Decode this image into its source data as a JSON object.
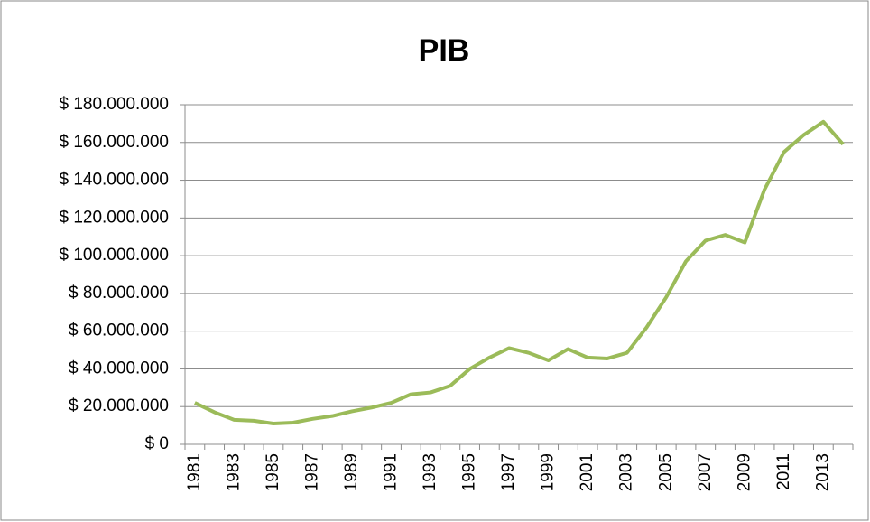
{
  "chart_data": {
    "type": "line",
    "title": "PIB",
    "categories": [
      "1981",
      null,
      "1983",
      null,
      "1985",
      null,
      "1987",
      null,
      "1989",
      null,
      "1991",
      null,
      "1993",
      null,
      "1995",
      null,
      "1997",
      null,
      "1999",
      null,
      "2001",
      null,
      "2003",
      null,
      "2005",
      null,
      "2007",
      null,
      "2009",
      null,
      "2011",
      null,
      "2013",
      null
    ],
    "series": [
      {
        "color": "#9bbb59",
        "values": [
          22000000,
          17000000,
          13000000,
          12500000,
          11000000,
          11500000,
          13500000,
          15000000,
          17500000,
          19500000,
          22000000,
          26500000,
          27500000,
          31000000,
          40000000,
          46000000,
          51000000,
          48500000,
          44500000,
          50500000,
          46000000,
          45500000,
          48500000,
          62000000,
          78000000,
          97000000,
          108000000,
          111000000,
          107000000,
          135000000,
          155000000,
          164000000,
          171000000,
          159000000
        ]
      }
    ],
    "ylim": [
      0,
      180000000
    ],
    "yticks": [
      {
        "value": 0,
        "label": "$ 0"
      },
      {
        "value": 20000000,
        "label": "$ 20.000.000"
      },
      {
        "value": 40000000,
        "label": "$ 40.000.000"
      },
      {
        "value": 60000000,
        "label": "$ 60.000.000"
      },
      {
        "value": 80000000,
        "label": "$ 80.000.000"
      },
      {
        "value": 100000000,
        "label": "$ 100.000.000"
      },
      {
        "value": 120000000,
        "label": "$ 120.000.000"
      },
      {
        "value": 140000000,
        "label": "$ 140.000.000"
      },
      {
        "value": 160000000,
        "label": "$ 160.000.000"
      },
      {
        "value": 180000000,
        "label": "$ 180.000.000"
      }
    ],
    "grid": true
  }
}
